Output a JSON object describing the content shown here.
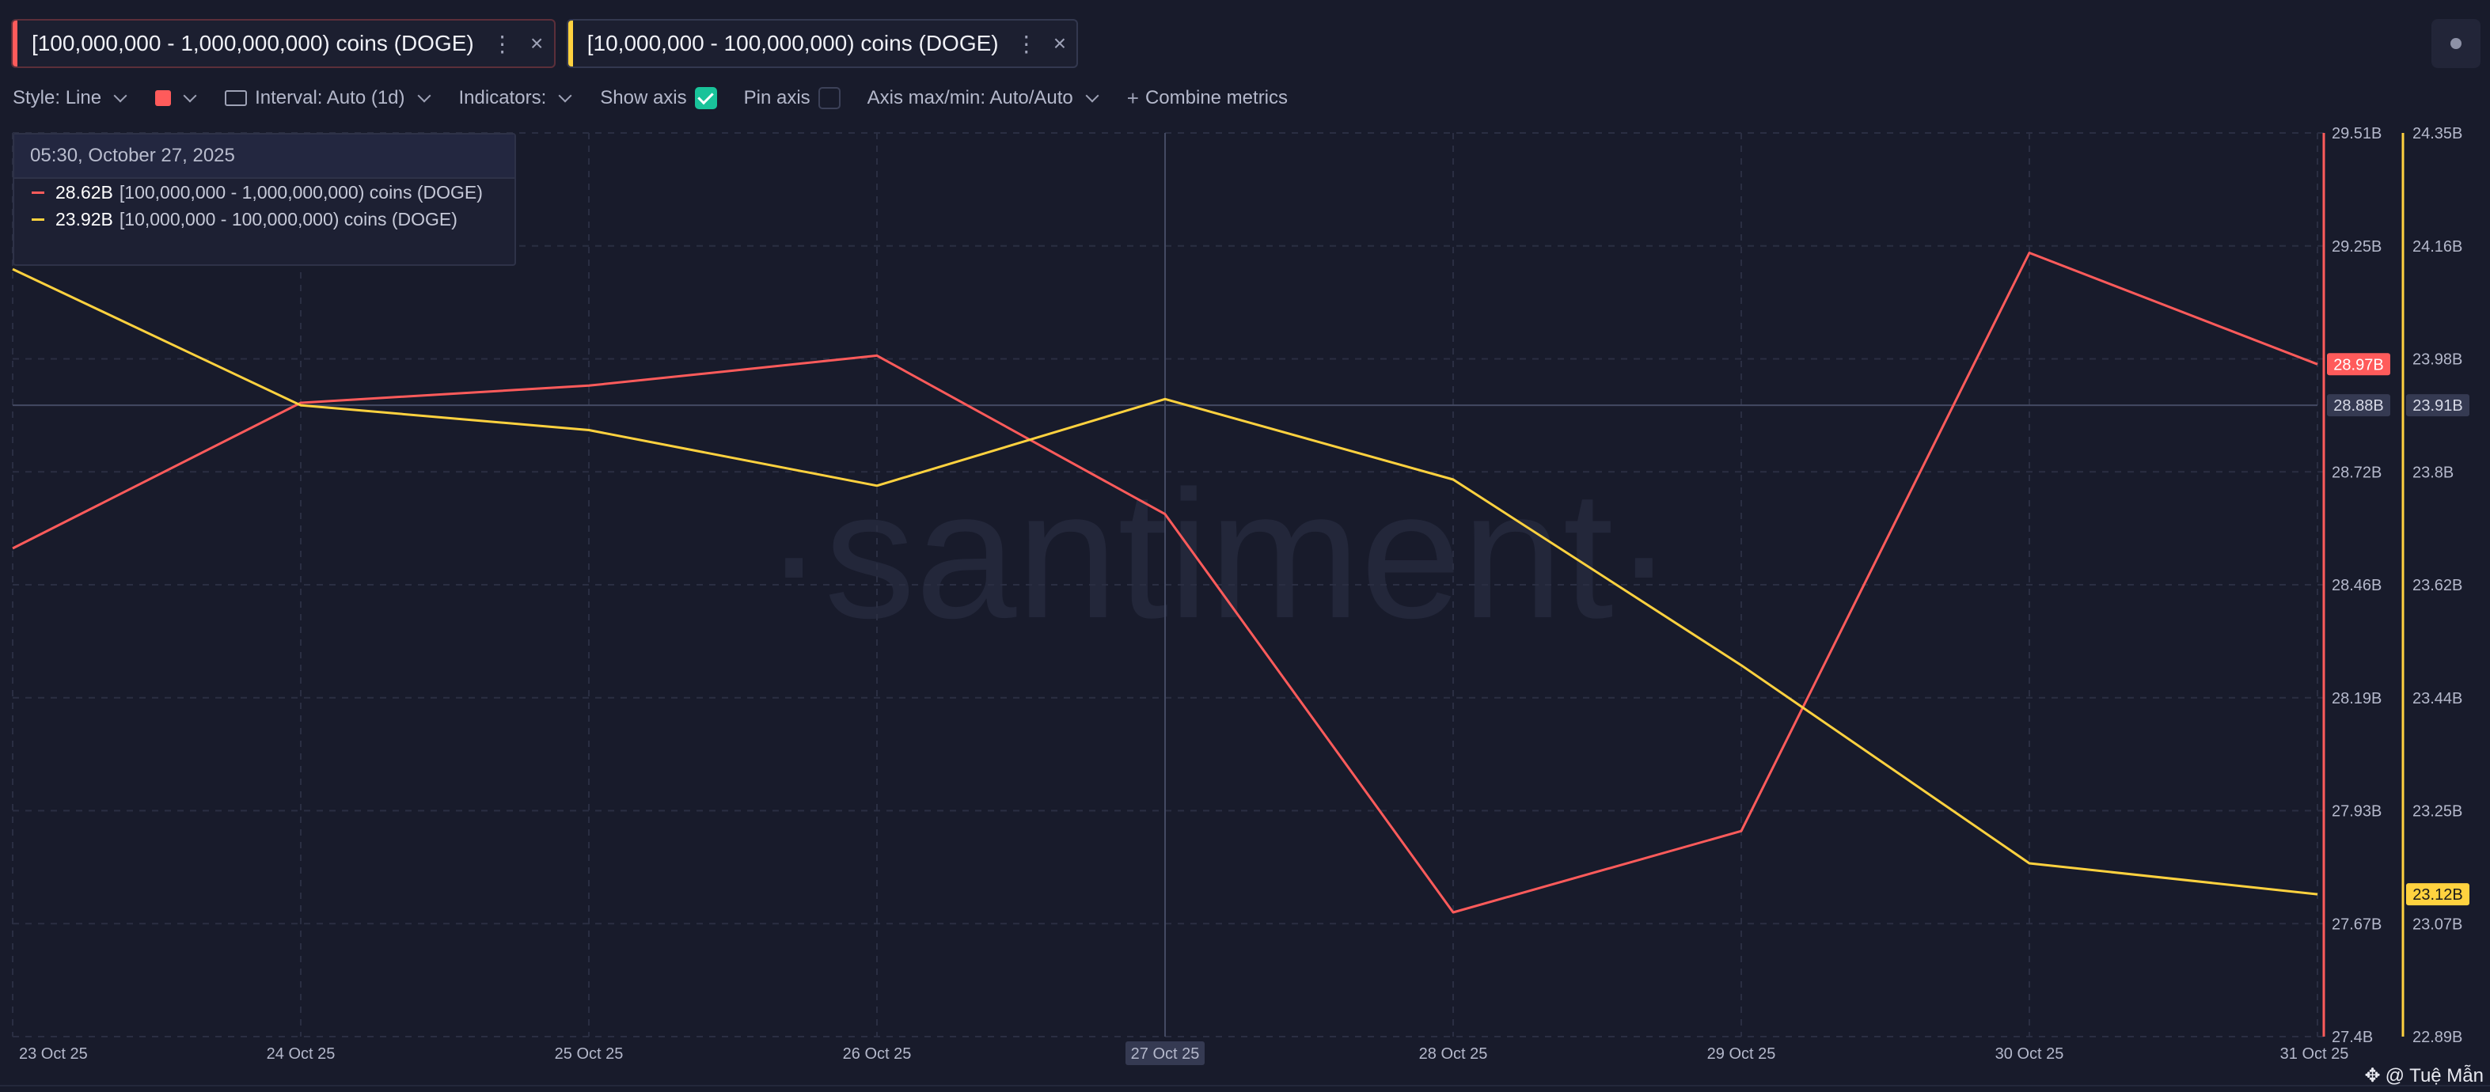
{
  "chips": [
    {
      "label": "[100,000,000 - 1,000,000,000) coins (DOGE)",
      "dots": "⋮",
      "close": "×"
    },
    {
      "label": "[10,000,000 - 100,000,000) coins (DOGE)",
      "dots": "⋮",
      "close": "×"
    }
  ],
  "toolbar": {
    "style": "Style: Line",
    "interval": "Interval: Auto (1d)",
    "indicators": "Indicators:",
    "show_axis": "Show axis",
    "pin_axis": "Pin axis",
    "axis_minmax": "Axis max/min: Auto/Auto",
    "combine": "Combine metrics"
  },
  "tooltip": {
    "date": "05:30, October 27, 2025",
    "rows": [
      {
        "value": "28.62B",
        "label": "[100,000,000 - 1,000,000,000) coins (DOGE)"
      },
      {
        "value": "23.92B",
        "label": "[10,000,000 - 100,000,000) coins (DOGE)"
      }
    ]
  },
  "watermark": "·santiment·",
  "credit": "@ Tuệ Mẫn",
  "colors": {
    "background": "#181b2b",
    "series_red": "#ff5b5b",
    "series_yellow": "#ffd23f",
    "grid": "#2a2e42",
    "crosshair_badge": "#353a52"
  },
  "chart_data": {
    "type": "line",
    "categories": [
      "23 Oct 25",
      "24 Oct 25",
      "25 Oct 25",
      "26 Oct 25",
      "27 Oct 25",
      "28 Oct 25",
      "29 Oct 25",
      "30 Oct 25",
      "31 Oct 25"
    ],
    "highlighted_category": "27 Oct 25",
    "series": [
      {
        "name": "[100,000,000 - 1,000,000,000) coins (DOGE)",
        "color": "#ff5b5b",
        "axis": "left",
        "values": [
          28.54,
          28.88,
          28.92,
          28.99,
          28.62,
          27.69,
          27.88,
          29.23,
          28.97
        ],
        "last_label": "28.97B"
      },
      {
        "name": "[10,000,000 - 100,000,000) coins (DOGE)",
        "color": "#ffd23f",
        "axis": "right",
        "values": [
          24.13,
          23.91,
          23.87,
          23.78,
          23.92,
          23.79,
          23.49,
          23.17,
          23.12
        ],
        "last_label": "23.12B"
      }
    ],
    "axis_red": {
      "ticks": [
        "29.51B",
        "29.25B",
        "28.98B",
        "28.72B",
        "28.46B",
        "28.19B",
        "27.93B",
        "27.67B",
        "27.4B"
      ],
      "ylim": [
        27.4,
        29.51
      ]
    },
    "axis_yellow": {
      "ticks": [
        "24.35B",
        "24.16B",
        "23.98B",
        "23.8B",
        "23.62B",
        "23.44B",
        "23.25B",
        "23.07B",
        "22.89B"
      ],
      "ylim": [
        22.89,
        24.35
      ]
    },
    "crosshair": {
      "red_label": "28.88B",
      "yellow_label": "23.91B",
      "value_yellow": 23.91
    },
    "grid": true
  }
}
